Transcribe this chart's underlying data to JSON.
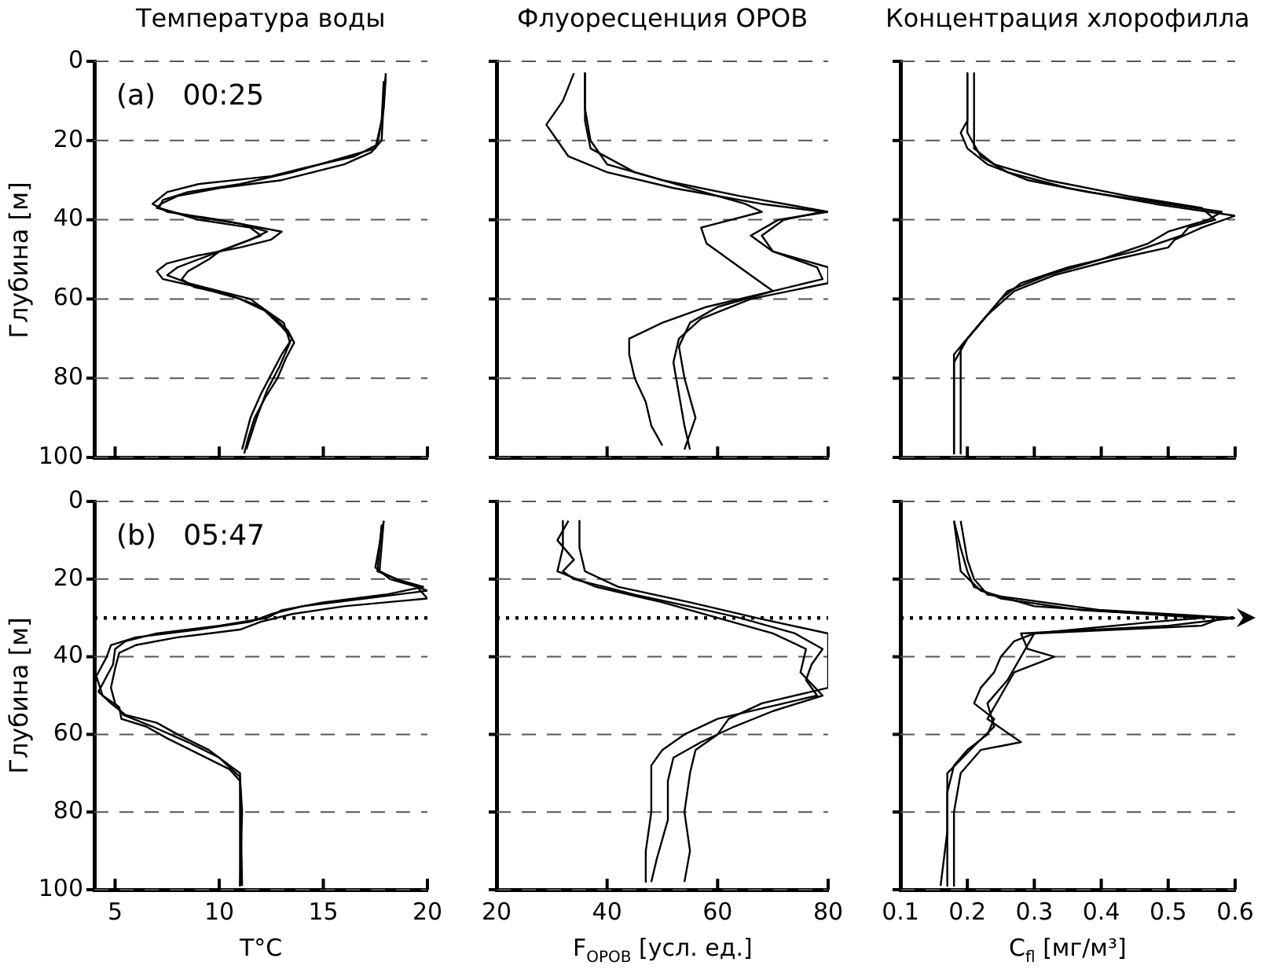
{
  "chart_data": [
    {
      "type": "line",
      "title": "Температура воды",
      "ylabel": "Глубина [м]",
      "annotations": [
        "(a)   00:25"
      ],
      "xlim": [
        4,
        20
      ],
      "xticks": [
        5,
        10,
        15,
        20
      ],
      "ylim": [
        100,
        0
      ],
      "yticks": [
        0,
        20,
        40,
        60,
        80,
        100
      ],
      "grid": "y",
      "tick_labels": "y",
      "series": [
        {
          "color": "#000000",
          "x": [
            18,
            17.9,
            17.8,
            17.3,
            16,
            14.5,
            13,
            10,
            8,
            7.2,
            7,
            8.5,
            11,
            12.3,
            11.5,
            10.5,
            9,
            8,
            7.5,
            8.5,
            10,
            11.5,
            12.5,
            13.3,
            13.6,
            13.2,
            12.8,
            12.2,
            11.7,
            11.4,
            11.2
          ],
          "values": [
            3,
            10,
            20,
            23,
            26,
            28,
            30,
            32,
            34,
            36,
            37,
            39,
            41,
            43,
            45,
            47,
            50,
            52,
            54,
            56,
            58,
            60,
            64,
            68,
            71,
            75,
            80,
            85,
            90,
            95,
            99
          ]
        },
        {
          "color": "#000000",
          "x": [
            18,
            17.9,
            17.6,
            16.5,
            14,
            12.5,
            9,
            7.5,
            6.8,
            7.5,
            10,
            13,
            12.5,
            11,
            9,
            7.5,
            7,
            7.3,
            9,
            11,
            12.2,
            13,
            13.5,
            13,
            12.5,
            12,
            11.5,
            11.1
          ],
          "values": [
            4,
            12,
            21,
            24,
            27,
            29,
            31,
            33,
            36,
            38,
            40,
            43,
            45,
            47,
            49,
            51,
            53,
            55,
            57,
            60,
            63,
            67,
            70,
            74,
            79,
            84,
            90,
            98
          ]
        },
        {
          "color": "#000000",
          "x": [
            17.9,
            17.8,
            17.5,
            15.5,
            13.5,
            11,
            8.5,
            7.3,
            7.1,
            9,
            11.5,
            12,
            11,
            10,
            9.5,
            8.5,
            8.2,
            8.8,
            10.5,
            12,
            13.1,
            13.4,
            12.9,
            12.3,
            11.8,
            11.3
          ],
          "values": [
            5,
            15,
            22,
            25,
            28,
            31,
            33,
            35,
            37,
            40,
            42,
            44,
            46,
            48,
            50,
            53,
            55,
            57,
            59,
            62,
            66,
            71,
            77,
            83,
            90,
            98
          ]
        }
      ]
    },
    {
      "type": "line",
      "title": "Флуоресценция ОРОВ",
      "xlim": [
        20,
        80
      ],
      "xticks": [
        20,
        40,
        60,
        80
      ],
      "ylim": [
        100,
        0
      ],
      "yticks": [
        0,
        20,
        40,
        60,
        80,
        100
      ],
      "grid": "y",
      "tick_labels": false,
      "series": [
        {
          "color": "#000000",
          "x": [
            34,
            32,
            29,
            31,
            33,
            40,
            52,
            68,
            79,
            72,
            68,
            70,
            78,
            79,
            70,
            58,
            50,
            44,
            44,
            45,
            47,
            48,
            50
          ],
          "values": [
            3,
            10,
            16,
            20,
            24,
            28,
            32,
            36,
            38,
            40,
            44,
            48,
            52,
            55,
            58,
            62,
            66,
            70,
            74,
            80,
            86,
            92,
            97
          ]
        },
        {
          "color": "#000000",
          "x": [
            36,
            36,
            37,
            40,
            50,
            64,
            80,
            71,
            66,
            70,
            80,
            80,
            66,
            57,
            53,
            52,
            53,
            54,
            55
          ],
          "values": [
            3,
            12,
            20,
            26,
            30,
            34,
            38,
            40,
            44,
            48,
            52,
            56,
            60,
            65,
            70,
            76,
            84,
            92,
            98
          ]
        },
        {
          "color": "#000000",
          "x": [
            36,
            36,
            37,
            45,
            55,
            65,
            68,
            57,
            58,
            62,
            66,
            70,
            60,
            55,
            53,
            54,
            56,
            54
          ],
          "values": [
            3,
            15,
            22,
            28,
            32,
            36,
            38,
            42,
            46,
            50,
            54,
            58,
            62,
            66,
            72,
            80,
            90,
            98
          ]
        }
      ]
    },
    {
      "type": "line",
      "title": "Концентрация хлорофилла",
      "xlim": [
        0.1,
        0.6
      ],
      "xticks": [
        0.1,
        0.2,
        0.3,
        0.4,
        0.5,
        0.6
      ],
      "ylim": [
        100,
        0
      ],
      "yticks": [
        0,
        20,
        40,
        60,
        80,
        100
      ],
      "grid": "y",
      "tick_labels": false,
      "series": [
        {
          "color": "#000000",
          "x": [
            0.2,
            0.2,
            0.19,
            0.2,
            0.23,
            0.29,
            0.38,
            0.5,
            0.58,
            0.56,
            0.5,
            0.47,
            0.4,
            0.32,
            0.26,
            0.24,
            0.22,
            0.2,
            0.18,
            0.18
          ],
          "values": [
            3,
            15,
            18,
            22,
            26,
            30,
            33,
            36,
            38,
            40,
            43,
            46,
            50,
            54,
            58,
            62,
            66,
            70,
            74,
            99
          ]
        },
        {
          "color": "#000000",
          "x": [
            0.21,
            0.21,
            0.24,
            0.32,
            0.44,
            0.55,
            0.57,
            0.53,
            0.52,
            0.45,
            0.35,
            0.28,
            0.25,
            0.22,
            0.19,
            0.19
          ],
          "values": [
            3,
            22,
            26,
            30,
            34,
            37,
            40,
            42,
            44,
            48,
            52,
            56,
            60,
            66,
            72,
            99
          ]
        },
        {
          "color": "#000000",
          "x": [
            0.2,
            0.2,
            0.22,
            0.26,
            0.35,
            0.48,
            0.6,
            0.55,
            0.51,
            0.5,
            0.42,
            0.33,
            0.27,
            0.23,
            0.2,
            0.18,
            0.18
          ],
          "values": [
            3,
            18,
            24,
            28,
            32,
            36,
            39,
            42,
            45,
            47,
            50,
            54,
            58,
            64,
            70,
            76,
            99
          ]
        }
      ]
    },
    {
      "type": "line",
      "xlabel": "T°C",
      "ylabel": "Глубина [м]",
      "annotations": [
        "(b)   05:47"
      ],
      "xlim": [
        4,
        20
      ],
      "xticks": [
        5,
        10,
        15,
        20
      ],
      "ylim": [
        100,
        0
      ],
      "yticks": [
        0,
        20,
        40,
        60,
        80,
        100
      ],
      "grid": "y",
      "ref_lines": [
        {
          "axis": "y",
          "value": 30,
          "line_style": "dotted",
          "color": "#000000"
        }
      ],
      "series": [
        {
          "color": "#000000",
          "x": [
            17.9,
            17.7,
            18.5,
            19.8,
            18,
            15,
            13,
            12.3,
            10,
            7,
            5.5,
            5,
            4.9,
            4.5,
            4.2,
            4.8,
            5.5,
            7,
            8,
            9.5,
            10.5,
            11,
            11.1
          ],
          "values": [
            5,
            18,
            20,
            22,
            24,
            26,
            28,
            30,
            32,
            34,
            36,
            38,
            42,
            46,
            49,
            52,
            55,
            57,
            60,
            64,
            68,
            70,
            99
          ]
        },
        {
          "color": "#000000",
          "x": [
            17.8,
            17.6,
            19,
            20,
            17,
            14,
            12.5,
            11.5,
            9,
            6,
            4.8,
            4.6,
            4.1,
            4.4,
            5.2,
            5.3,
            6.5,
            7.5,
            9,
            10.5,
            11,
            11
          ],
          "values": [
            6,
            18,
            21,
            23,
            25,
            27,
            29,
            31,
            33,
            35,
            37,
            40,
            45,
            50,
            53,
            56,
            58,
            61,
            65,
            69,
            72,
            99
          ]
        },
        {
          "color": "#000000",
          "x": [
            17.9,
            17.5,
            18.2,
            19.5,
            20,
            16,
            13.5,
            12,
            11,
            8,
            6,
            5.2,
            5,
            4.8,
            5,
            5.4,
            6.8,
            8.5,
            10,
            11,
            11.1,
            11
          ],
          "values": [
            5,
            17,
            20,
            22,
            25,
            27,
            29,
            31,
            33,
            35,
            37,
            39,
            43,
            48,
            52,
            55,
            58,
            62,
            66,
            71,
            80,
            99
          ]
        }
      ]
    },
    {
      "type": "line",
      "xlabel": "F$_{ОРОВ}$ [усл. ед.]",
      "xlim": [
        20,
        80
      ],
      "xticks": [
        20,
        40,
        60,
        80
      ],
      "ylim": [
        100,
        0
      ],
      "yticks": [
        0,
        20,
        40,
        60,
        80,
        100
      ],
      "grid": "y",
      "tick_labels": "x",
      "ref_lines": [
        {
          "axis": "y",
          "value": 30,
          "line_style": "dotted",
          "color": "#000000"
        }
      ],
      "series": [
        {
          "color": "#000000",
          "x": [
            33,
            31,
            34,
            32,
            34,
            45,
            58,
            64,
            74,
            79,
            77,
            76,
            78,
            72,
            60,
            54,
            50,
            48,
            48,
            47,
            47
          ],
          "values": [
            5,
            10,
            15,
            18,
            20,
            24,
            28,
            30,
            34,
            38,
            42,
            46,
            50,
            52,
            56,
            60,
            64,
            68,
            80,
            90,
            98
          ]
        },
        {
          "color": "#000000",
          "x": [
            35,
            35,
            36,
            42,
            55,
            67,
            80,
            80,
            68,
            62,
            60,
            56,
            55,
            54,
            55,
            54
          ],
          "values": [
            5,
            12,
            18,
            22,
            26,
            30,
            34,
            48,
            52,
            56,
            60,
            64,
            70,
            80,
            90,
            98
          ]
        },
        {
          "color": "#000000",
          "x": [
            32,
            32,
            31,
            38,
            50,
            60,
            70,
            76,
            75,
            79,
            70,
            63,
            57,
            52,
            51,
            51,
            49,
            48
          ],
          "values": [
            5,
            12,
            18,
            22,
            26,
            30,
            34,
            38,
            44,
            50,
            54,
            58,
            62,
            66,
            72,
            82,
            92,
            98
          ]
        }
      ]
    },
    {
      "type": "line",
      "xlabel": "C$_{fl}$ [мг/м³]",
      "xlim": [
        0.1,
        0.6
      ],
      "xticks": [
        0.1,
        0.2,
        0.3,
        0.4,
        0.5,
        0.6
      ],
      "ylim": [
        100,
        0
      ],
      "yticks": [
        0,
        20,
        40,
        60,
        80,
        100
      ],
      "grid": "y",
      "tick_labels": "x",
      "ref_lines": [
        {
          "axis": "y",
          "value": 30,
          "line_style": "dotted",
          "color": "#000000"
        }
      ],
      "series": [
        {
          "color": "#000000",
          "x": [
            0.18,
            0.19,
            0.2,
            0.21,
            0.25,
            0.37,
            0.58,
            0.55,
            0.3,
            0.27,
            0.25,
            0.24,
            0.22,
            0.21,
            0.24,
            0.23,
            0.2,
            0.18,
            0.17,
            0.17,
            0.16
          ],
          "values": [
            5,
            12,
            18,
            22,
            25,
            28,
            30,
            32,
            34,
            36,
            40,
            44,
            48,
            52,
            56,
            60,
            64,
            68,
            75,
            85,
            99
          ]
        },
        {
          "color": "#000000",
          "x": [
            0.19,
            0.2,
            0.21,
            0.23,
            0.4,
            0.6,
            0.5,
            0.28,
            0.29,
            0.33,
            0.27,
            0.25,
            0.23,
            0.28,
            0.22,
            0.19,
            0.18,
            0.18
          ],
          "values": [
            5,
            15,
            20,
            24,
            28,
            30,
            32,
            34,
            38,
            40,
            44,
            50,
            56,
            62,
            64,
            70,
            80,
            99
          ]
        },
        {
          "color": "#000000",
          "x": [
            0.18,
            0.19,
            0.22,
            0.3,
            0.55,
            0.48,
            0.3,
            0.28,
            0.26,
            0.23,
            0.24,
            0.21,
            0.17,
            0.17
          ],
          "values": [
            5,
            18,
            23,
            27,
            30,
            31,
            34,
            40,
            46,
            52,
            58,
            63,
            70,
            99
          ]
        }
      ]
    }
  ]
}
